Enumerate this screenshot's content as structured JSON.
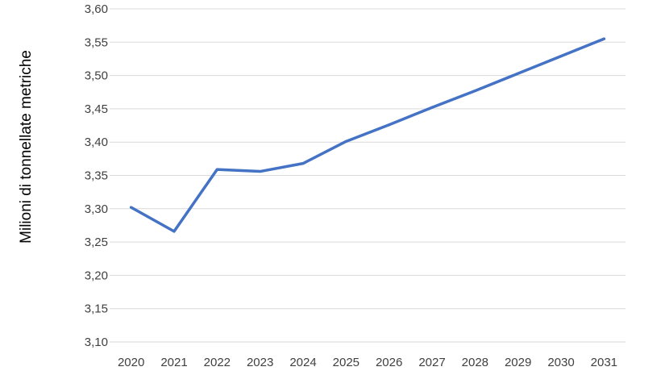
{
  "chart_data": {
    "type": "line",
    "title": "",
    "xlabel": "",
    "ylabel": "Milioni di tonnellate metriche",
    "ylim": [
      3.1,
      3.6
    ],
    "y_ticks": [
      "3,10",
      "3,15",
      "3,20",
      "3,25",
      "3,30",
      "3,35",
      "3,40",
      "3,45",
      "3,50",
      "3,55",
      "3,60"
    ],
    "x": [
      "2020",
      "2021",
      "2022",
      "2023",
      "2024",
      "2025",
      "2026",
      "2027",
      "2028",
      "2029",
      "2030",
      "2031"
    ],
    "series": [
      {
        "values": [
          3.302,
          3.266,
          3.359,
          3.356,
          3.368,
          3.401,
          3.426,
          3.452,
          3.477,
          3.503,
          3.529,
          3.555
        ]
      }
    ],
    "grid": true,
    "legend": "none",
    "colors": {
      "line": "#4472c4",
      "grid": "#d9d9d9"
    }
  }
}
